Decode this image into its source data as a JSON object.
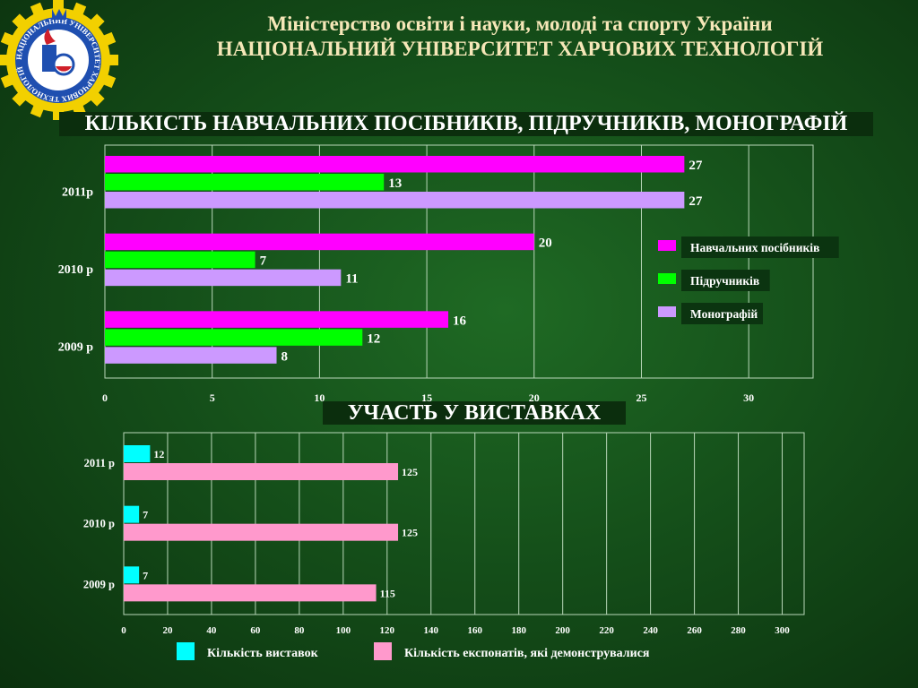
{
  "header": {
    "line1": "Міністерство освіти і науки, молоді та спорту України",
    "line2": "НАЦІОНАЛЬНИЙ УНІВЕРСИТЕТ ХАРЧОВИХ ТЕХНОЛОГІЙ"
  },
  "logo": {
    "text": "НАЦІОНАЛЬНИЙ УНІВЕРСИТЕТ ХАРЧОВИХ ТЕХНОЛОГІЙ",
    "colors": {
      "gear": "#f2d000",
      "ring": "#1f4fb0"
    }
  },
  "chart_data": [
    {
      "type": "bar",
      "orientation": "horizontal",
      "title": "КІЛЬКІСТЬ НАВЧАЛЬНИХ ПОСІБНИКІВ, ПІДРУЧНИКІВ, МОНОГРАФІЙ",
      "categories": [
        "2011р",
        "2010 р",
        "2009 р"
      ],
      "series": [
        {
          "name": "Навчальних посібників",
          "color": "#ff00ff",
          "values": [
            27,
            20,
            16
          ]
        },
        {
          "name": "Підручників",
          "color": "#00ff00",
          "values": [
            13,
            7,
            12
          ]
        },
        {
          "name": "Монографій",
          "color": "#cc99ff",
          "values": [
            27,
            11,
            8
          ]
        }
      ],
      "xlim": [
        0,
        33
      ],
      "xticks": [
        0,
        5,
        10,
        15,
        20,
        25,
        30
      ],
      "grid": true,
      "legend": "right"
    },
    {
      "type": "bar",
      "orientation": "horizontal",
      "title": "УЧАСТЬ У ВИСТАВКАХ",
      "categories": [
        "2011 р",
        "2010 р",
        "2009 р"
      ],
      "series": [
        {
          "name": "Кількість виставок",
          "color": "#00ffff",
          "values": [
            12,
            7,
            7
          ]
        },
        {
          "name": "Кількість експонатів, які демонструвалися",
          "color": "#ff99cc",
          "values": [
            125,
            125,
            115
          ]
        }
      ],
      "xlim": [
        0,
        310
      ],
      "xticks": [
        0,
        20,
        40,
        60,
        80,
        100,
        120,
        140,
        160,
        180,
        200,
        220,
        240,
        260,
        280,
        300
      ],
      "grid": true,
      "legend": "bottom"
    }
  ]
}
